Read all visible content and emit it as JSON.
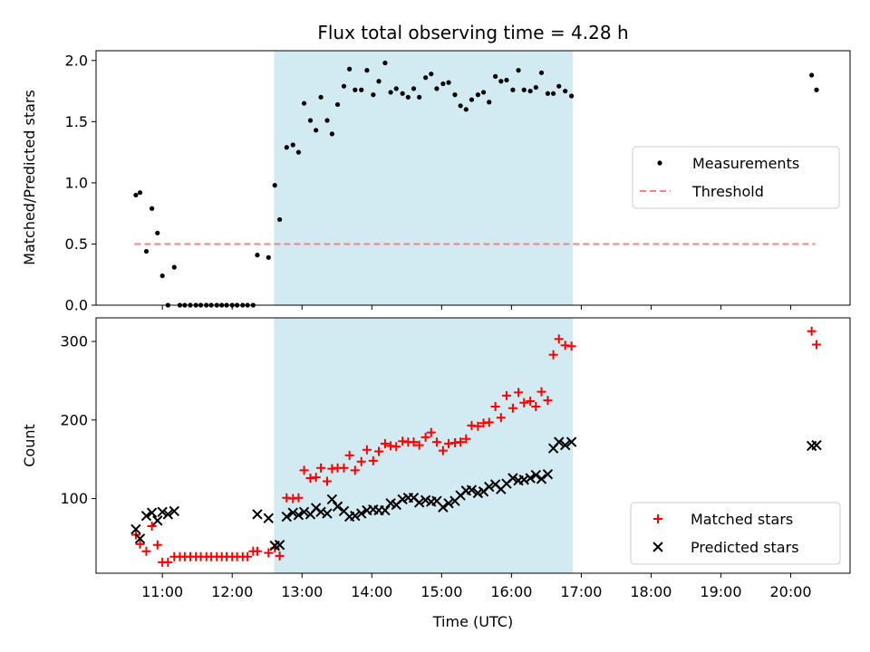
{
  "chart_data": {
    "type": "scatter",
    "title": "Flux total observing time = 4.28 h",
    "xlabel": "Time (UTC)",
    "x_unit": "hours (UTC)",
    "xlim": [
      10.05,
      20.85
    ],
    "xticks": [
      {
        "value": 11,
        "label": "11:00"
      },
      {
        "value": 12,
        "label": "12:00"
      },
      {
        "value": 13,
        "label": "13:00"
      },
      {
        "value": 14,
        "label": "14:00"
      },
      {
        "value": 15,
        "label": "15:00"
      },
      {
        "value": 16,
        "label": "16:00"
      },
      {
        "value": 17,
        "label": "17:00"
      },
      {
        "value": 18,
        "label": "18:00"
      },
      {
        "value": 19,
        "label": "19:00"
      },
      {
        "value": 20,
        "label": "20:00"
      }
    ],
    "observing_window": {
      "start": 12.6,
      "end": 16.88,
      "color": "#add8e6"
    },
    "panels": [
      {
        "ylabel": "Matched/Predicted stars",
        "ylim": [
          0,
          2.08
        ],
        "yticks": [
          "0.0",
          "0.5",
          "1.0",
          "1.5",
          "2.0"
        ],
        "ytick_values": [
          0,
          0.5,
          1.0,
          1.5,
          2.0
        ],
        "legend": {
          "position": "center-right",
          "entries": [
            "Measurements",
            "Threshold"
          ]
        },
        "threshold": {
          "y": 0.5,
          "x_start": 10.6,
          "x_end": 20.35,
          "color": "#ff7f7f",
          "style": "dashed"
        },
        "series": [
          {
            "name": "Measurements",
            "marker": "dot",
            "color": "#000000",
            "points": [
              [
                10.62,
                0.9
              ],
              [
                10.68,
                0.92
              ],
              [
                10.77,
                0.44
              ],
              [
                10.85,
                0.79
              ],
              [
                10.93,
                0.59
              ],
              [
                11.0,
                0.24
              ],
              [
                11.08,
                0.0
              ],
              [
                11.17,
                0.31
              ],
              [
                11.25,
                0.0
              ],
              [
                11.32,
                0.0
              ],
              [
                11.4,
                0.0
              ],
              [
                11.48,
                0.0
              ],
              [
                11.55,
                0.0
              ],
              [
                11.63,
                0.0
              ],
              [
                11.7,
                0.0
              ],
              [
                11.78,
                0.0
              ],
              [
                11.85,
                0.0
              ],
              [
                11.92,
                0.0
              ],
              [
                12.0,
                0.0
              ],
              [
                12.07,
                0.0
              ],
              [
                12.15,
                0.0
              ],
              [
                12.22,
                0.0
              ],
              [
                12.3,
                0.0
              ],
              [
                12.36,
                0.41
              ],
              [
                12.52,
                0.39
              ],
              [
                12.61,
                0.98
              ],
              [
                12.68,
                0.7
              ],
              [
                12.78,
                1.29
              ],
              [
                12.87,
                1.31
              ],
              [
                12.95,
                1.25
              ],
              [
                13.03,
                1.65
              ],
              [
                13.12,
                1.51
              ],
              [
                13.2,
                1.43
              ],
              [
                13.27,
                1.7
              ],
              [
                13.36,
                1.51
              ],
              [
                13.43,
                1.4
              ],
              [
                13.51,
                1.64
              ],
              [
                13.6,
                1.79
              ],
              [
                13.68,
                1.93
              ],
              [
                13.76,
                1.76
              ],
              [
                13.85,
                1.76
              ],
              [
                13.93,
                1.92
              ],
              [
                14.02,
                1.72
              ],
              [
                14.1,
                1.83
              ],
              [
                14.19,
                1.98
              ],
              [
                14.27,
                1.74
              ],
              [
                14.35,
                1.77
              ],
              [
                14.44,
                1.73
              ],
              [
                14.52,
                1.7
              ],
              [
                14.6,
                1.77
              ],
              [
                14.68,
                1.7
              ],
              [
                14.77,
                1.86
              ],
              [
                14.85,
                1.89
              ],
              [
                14.93,
                1.77
              ],
              [
                15.02,
                1.81
              ],
              [
                15.1,
                1.82
              ],
              [
                15.19,
                1.72
              ],
              [
                15.27,
                1.63
              ],
              [
                15.35,
                1.6
              ],
              [
                15.43,
                1.68
              ],
              [
                15.52,
                1.72
              ],
              [
                15.6,
                1.74
              ],
              [
                15.68,
                1.66
              ],
              [
                15.77,
                1.87
              ],
              [
                15.85,
                1.83
              ],
              [
                15.93,
                1.84
              ],
              [
                16.02,
                1.76
              ],
              [
                16.1,
                1.92
              ],
              [
                16.18,
                1.76
              ],
              [
                16.27,
                1.75
              ],
              [
                16.35,
                1.78
              ],
              [
                16.43,
                1.9
              ],
              [
                16.52,
                1.73
              ],
              [
                16.6,
                1.73
              ],
              [
                16.68,
                1.79
              ],
              [
                16.77,
                1.75
              ],
              [
                16.86,
                1.71
              ],
              [
                20.3,
                1.88
              ],
              [
                20.37,
                1.76
              ]
            ]
          }
        ]
      },
      {
        "ylabel": "Count",
        "ylim": [
          5,
          330
        ],
        "yticks": [
          "100",
          "200",
          "300"
        ],
        "ytick_values": [
          100,
          200,
          300
        ],
        "legend": {
          "position": "lower-right",
          "entries": [
            "Matched stars",
            "Predicted stars"
          ]
        },
        "series": [
          {
            "name": "Matched stars",
            "marker": "plus",
            "color": "#ff0000",
            "points": [
              [
                10.62,
                54
              ],
              [
                10.68,
                42
              ],
              [
                10.77,
                33
              ],
              [
                10.85,
                65
              ],
              [
                10.93,
                41
              ],
              [
                11.0,
                19
              ],
              [
                11.08,
                19
              ],
              [
                11.17,
                26
              ],
              [
                11.25,
                26
              ],
              [
                11.32,
                26
              ],
              [
                11.4,
                26
              ],
              [
                11.48,
                26
              ],
              [
                11.55,
                26
              ],
              [
                11.63,
                26
              ],
              [
                11.7,
                26
              ],
              [
                11.78,
                26
              ],
              [
                11.85,
                26
              ],
              [
                11.92,
                26
              ],
              [
                12.0,
                26
              ],
              [
                12.07,
                26
              ],
              [
                12.15,
                26
              ],
              [
                12.22,
                26
              ],
              [
                12.3,
                33
              ],
              [
                12.36,
                33
              ],
              [
                12.52,
                31
              ],
              [
                12.61,
                37
              ],
              [
                12.68,
                27
              ],
              [
                12.78,
                101
              ],
              [
                12.87,
                100
              ],
              [
                12.95,
                101
              ],
              [
                13.03,
                136
              ],
              [
                13.12,
                126
              ],
              [
                13.2,
                127
              ],
              [
                13.27,
                139
              ],
              [
                13.36,
                122
              ],
              [
                13.43,
                138
              ],
              [
                13.51,
                139
              ],
              [
                13.6,
                139
              ],
              [
                13.68,
                155
              ],
              [
                13.76,
                136
              ],
              [
                13.85,
                147
              ],
              [
                13.93,
                162
              ],
              [
                14.02,
                148
              ],
              [
                14.1,
                160
              ],
              [
                14.19,
                170
              ],
              [
                14.27,
                167
              ],
              [
                14.35,
                166
              ],
              [
                14.44,
                173
              ],
              [
                14.52,
                172
              ],
              [
                14.6,
                172
              ],
              [
                14.68,
                168
              ],
              [
                14.77,
                178
              ],
              [
                14.85,
                184
              ],
              [
                14.93,
                172
              ],
              [
                15.02,
                161
              ],
              [
                15.1,
                170
              ],
              [
                15.19,
                171
              ],
              [
                15.27,
                172
              ],
              [
                15.35,
                176
              ],
              [
                15.43,
                193
              ],
              [
                15.52,
                192
              ],
              [
                15.6,
                196
              ],
              [
                15.68,
                197
              ],
              [
                15.77,
                217
              ],
              [
                15.85,
                203
              ],
              [
                15.93,
                231
              ],
              [
                16.02,
                215
              ],
              [
                16.1,
                235
              ],
              [
                16.18,
                222
              ],
              [
                16.27,
                224
              ],
              [
                16.35,
                217
              ],
              [
                16.43,
                236
              ],
              [
                16.52,
                225
              ],
              [
                16.6,
                283
              ],
              [
                16.68,
                303
              ],
              [
                16.77,
                295
              ],
              [
                16.86,
                294
              ],
              [
                20.3,
                313
              ],
              [
                20.37,
                296
              ]
            ]
          },
          {
            "name": "Predicted stars",
            "marker": "x",
            "color": "#000000",
            "points": [
              [
                10.62,
                61
              ],
              [
                10.68,
                49
              ],
              [
                10.77,
                78
              ],
              [
                10.85,
                82
              ],
              [
                10.93,
                72
              ],
              [
                11.0,
                83
              ],
              [
                11.08,
                80
              ],
              [
                11.17,
                84
              ],
              [
                12.36,
                80
              ],
              [
                12.52,
                75
              ],
              [
                12.61,
                40
              ],
              [
                12.68,
                41
              ],
              [
                12.78,
                77
              ],
              [
                12.87,
                82
              ],
              [
                12.95,
                79
              ],
              [
                13.03,
                83
              ],
              [
                13.12,
                80
              ],
              [
                13.2,
                88
              ],
              [
                13.27,
                83
              ],
              [
                13.36,
                81
              ],
              [
                13.43,
                99
              ],
              [
                13.51,
                90
              ],
              [
                13.6,
                84
              ],
              [
                13.68,
                77
              ],
              [
                13.76,
                78
              ],
              [
                13.85,
                81
              ],
              [
                13.93,
                85
              ],
              [
                14.02,
                86
              ],
              [
                14.1,
                85
              ],
              [
                14.19,
                85
              ],
              [
                14.27,
                94
              ],
              [
                14.35,
                92
              ],
              [
                14.44,
                99
              ],
              [
                14.52,
                101
              ],
              [
                14.6,
                101
              ],
              [
                14.68,
                95
              ],
              [
                14.77,
                98
              ],
              [
                14.85,
                96
              ],
              [
                14.93,
                97
              ],
              [
                15.02,
                89
              ],
              [
                15.1,
                94
              ],
              [
                15.19,
                97
              ],
              [
                15.27,
                104
              ],
              [
                15.35,
                110
              ],
              [
                15.43,
                111
              ],
              [
                15.52,
                107
              ],
              [
                15.6,
                109
              ],
              [
                15.68,
                115
              ],
              [
                15.77,
                118
              ],
              [
                15.85,
                112
              ],
              [
                15.93,
                119
              ],
              [
                16.02,
                126
              ],
              [
                16.1,
                123
              ],
              [
                16.18,
                124
              ],
              [
                16.27,
                126
              ],
              [
                16.35,
                130
              ],
              [
                16.43,
                125
              ],
              [
                16.52,
                131
              ],
              [
                16.6,
                164
              ],
              [
                16.68,
                172
              ],
              [
                16.77,
                168
              ],
              [
                16.86,
                172
              ],
              [
                20.3,
                167
              ],
              [
                20.37,
                168
              ]
            ]
          }
        ]
      }
    ]
  }
}
